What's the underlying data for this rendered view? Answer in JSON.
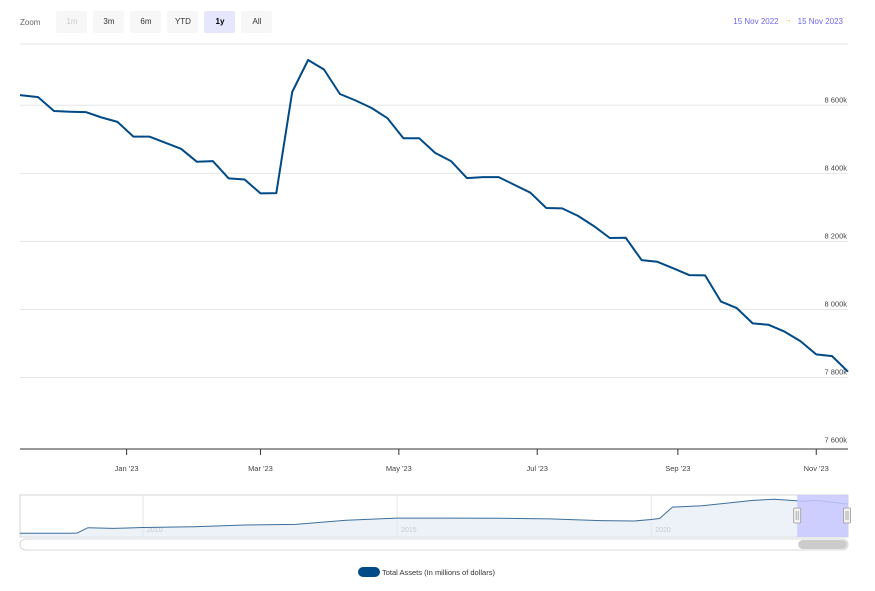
{
  "zoom": {
    "label": "Zoom",
    "buttons": [
      {
        "label": "1m",
        "state": "disabled"
      },
      {
        "label": "3m",
        "state": "normal"
      },
      {
        "label": "6m",
        "state": "normal"
      },
      {
        "label": "YTD",
        "state": "normal"
      },
      {
        "label": "1y",
        "state": "active"
      },
      {
        "label": "All",
        "state": "normal"
      }
    ]
  },
  "range": {
    "from": "15 Nov 2022",
    "arrow": "→",
    "to": "15 Nov 2023"
  },
  "legend": {
    "label": "Total Assets (In millions of dollars)"
  },
  "colors": {
    "series": "#004a87",
    "navigator_fill": "#c8c8ff",
    "range_text": "#6f67ea"
  },
  "chart_data": {
    "type": "line",
    "y_ticks": [
      "7 600k",
      "7 800k",
      "8 000k",
      "8 200k",
      "8 400k",
      "8 600k"
    ],
    "y_tick_values": [
      7600000,
      7800000,
      8000000,
      8200000,
      8400000,
      8600000
    ],
    "ylim": [
      7590000,
      8780000
    ],
    "x_ticks": [
      {
        "label": "Jan '23",
        "date": "2023-01-01"
      },
      {
        "label": "Mar '23",
        "date": "2023-03-01"
      },
      {
        "label": "May '23",
        "date": "2023-05-01"
      },
      {
        "label": "Jul '23",
        "date": "2023-07-01"
      },
      {
        "label": "Sep '23",
        "date": "2023-09-01"
      },
      {
        "label": "Nov '23",
        "date": "2023-11-01"
      }
    ],
    "xlim": [
      "2022-11-15",
      "2023-11-15"
    ],
    "grid": true,
    "legend_position": "bottom-center",
    "series": [
      {
        "name": "Total Assets (In millions of dollars)",
        "points": [
          [
            "2022-11-15",
            8630000
          ],
          [
            "2022-11-23",
            8624000
          ],
          [
            "2022-11-30",
            8583000
          ],
          [
            "2022-12-07",
            8581000
          ],
          [
            "2022-12-14",
            8580000
          ],
          [
            "2022-12-21",
            8564000
          ],
          [
            "2022-12-28",
            8551000
          ],
          [
            "2023-01-04",
            8508000
          ],
          [
            "2023-01-11",
            8508000
          ],
          [
            "2023-01-18",
            8490000
          ],
          [
            "2023-01-25",
            8472000
          ],
          [
            "2023-02-01",
            8434000
          ],
          [
            "2023-02-08",
            8436000
          ],
          [
            "2023-02-15",
            8385000
          ],
          [
            "2023-02-22",
            8382000
          ],
          [
            "2023-03-01",
            8341000
          ],
          [
            "2023-03-08",
            8342000
          ],
          [
            "2023-03-15",
            8639000
          ],
          [
            "2023-03-22",
            8733000
          ],
          [
            "2023-03-29",
            8705000
          ],
          [
            "2023-04-05",
            8633000
          ],
          [
            "2023-04-12",
            8614000
          ],
          [
            "2023-04-19",
            8592000
          ],
          [
            "2023-04-26",
            8562000
          ],
          [
            "2023-05-03",
            8503000
          ],
          [
            "2023-05-10",
            8503000
          ],
          [
            "2023-05-17",
            8460000
          ],
          [
            "2023-05-24",
            8436000
          ],
          [
            "2023-05-31",
            8386000
          ],
          [
            "2023-06-07",
            8389000
          ],
          [
            "2023-06-14",
            8389000
          ],
          [
            "2023-06-21",
            8366000
          ],
          [
            "2023-06-28",
            8343000
          ],
          [
            "2023-07-05",
            8298000
          ],
          [
            "2023-07-12",
            8297000
          ],
          [
            "2023-07-19",
            8275000
          ],
          [
            "2023-07-26",
            8245000
          ],
          [
            "2023-08-02",
            8210000
          ],
          [
            "2023-08-09",
            8211000
          ],
          [
            "2023-08-16",
            8145000
          ],
          [
            "2023-08-23",
            8140000
          ],
          [
            "2023-08-30",
            8121000
          ],
          [
            "2023-09-06",
            8101000
          ],
          [
            "2023-09-13",
            8100000
          ],
          [
            "2023-09-20",
            8023000
          ],
          [
            "2023-09-27",
            8004000
          ],
          [
            "2023-10-04",
            7959000
          ],
          [
            "2023-10-11",
            7955000
          ],
          [
            "2023-10-18",
            7935000
          ],
          [
            "2023-10-25",
            7907000
          ],
          [
            "2023-11-01",
            7868000
          ],
          [
            "2023-11-08",
            7863000
          ],
          [
            "2023-11-15",
            7817000
          ]
        ]
      }
    ],
    "navigator": {
      "x_ticks": [
        {
          "label": "2010",
          "date": "2010-01-01"
        },
        {
          "label": "2015",
          "date": "2015-01-01"
        },
        {
          "label": "2020",
          "date": "2020-01-01"
        }
      ],
      "xlim": [
        "2007-08-01",
        "2023-11-15"
      ],
      "ylim": [
        0,
        9500000
      ],
      "selected_range": [
        "2022-11-15",
        "2023-11-15"
      ],
      "points": [
        [
          "2007-08-01",
          880000
        ],
        [
          "2008-08-01",
          900000
        ],
        [
          "2008-09-15",
          950000
        ],
        [
          "2008-12-01",
          2200000
        ],
        [
          "2009-06-01",
          2050000
        ],
        [
          "2010-01-01",
          2250000
        ],
        [
          "2011-01-01",
          2450000
        ],
        [
          "2012-01-01",
          2850000
        ],
        [
          "2013-01-01",
          3000000
        ],
        [
          "2014-01-01",
          4000000
        ],
        [
          "2015-01-01",
          4500000
        ],
        [
          "2016-01-01",
          4500000
        ],
        [
          "2017-01-01",
          4450000
        ],
        [
          "2018-01-01",
          4300000
        ],
        [
          "2019-01-01",
          3900000
        ],
        [
          "2019-09-01",
          3800000
        ],
        [
          "2020-01-01",
          4150000
        ],
        [
          "2020-03-01",
          4400000
        ],
        [
          "2020-06-01",
          7100000
        ],
        [
          "2021-01-01",
          7400000
        ],
        [
          "2022-01-01",
          8700000
        ],
        [
          "2022-06-01",
          8950000
        ],
        [
          "2023-01-01",
          8500000
        ],
        [
          "2023-03-22",
          8733000
        ],
        [
          "2023-11-15",
          7817000
        ]
      ]
    }
  }
}
